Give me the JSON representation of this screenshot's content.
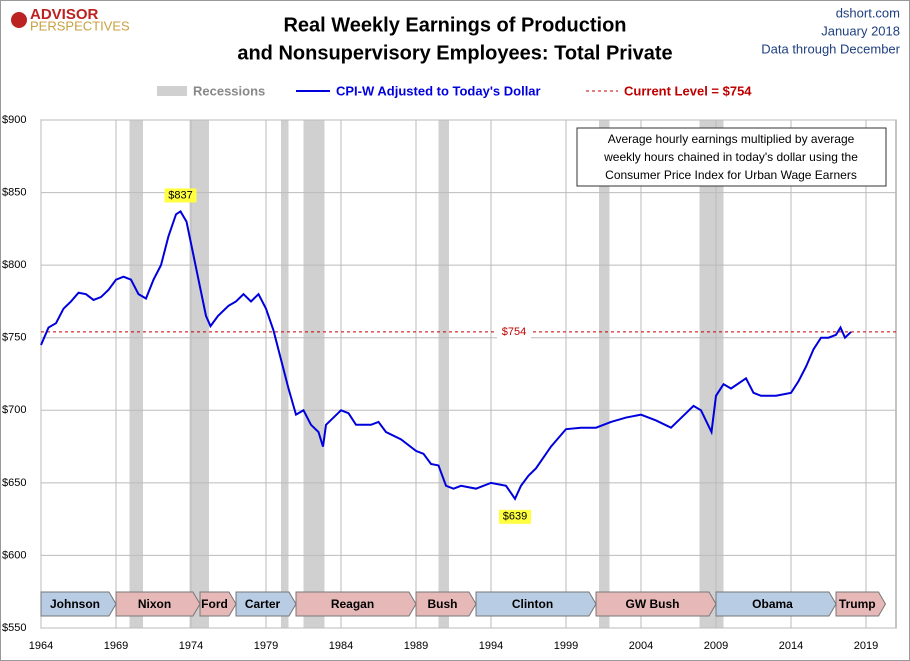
{
  "brand": {
    "line1": "ADVISOR",
    "line2": "PERSPECTIVES"
  },
  "source": {
    "site": "dshort.com",
    "date": "January 2018",
    "note": "Data through December"
  },
  "chart_data": {
    "type": "line",
    "title": [
      "Real Weekly Earnings of Production",
      "and Nonsupervisory Employees: Total Private"
    ],
    "note": [
      "Average hourly earnings multiplied by average",
      "weekly hours chained in today's dollar using the",
      "Consumer Price Index for Urban Wage Earners"
    ],
    "xlim": [
      1964,
      2021
    ],
    "xticks": [
      1964,
      1969,
      1974,
      1979,
      1984,
      1989,
      1994,
      1999,
      2004,
      2009,
      2014,
      2019
    ],
    "ylim": [
      550,
      900
    ],
    "yticks": [
      {
        "value": 550,
        "label": "$550"
      },
      {
        "value": 600,
        "label": "$600"
      },
      {
        "value": 650,
        "label": "$650"
      },
      {
        "value": 700,
        "label": "$700"
      },
      {
        "value": 750,
        "label": "$750"
      },
      {
        "value": 800,
        "label": "$800"
      },
      {
        "value": 850,
        "label": "$850"
      },
      {
        "value": 900,
        "label": "$900"
      }
    ],
    "grid": true,
    "series": [
      {
        "name": "CPI-W Adjusted to Today's Dollar",
        "color": "#0000dd",
        "x": [
          1964,
          1964.5,
          1965,
          1965.5,
          1966,
          1966.5,
          1967,
          1967.5,
          1968,
          1968.5,
          1969,
          1969.5,
          1970,
          1970.5,
          1971,
          1971.5,
          1972,
          1972.5,
          1973,
          1973.3,
          1973.7,
          1974,
          1974.5,
          1975,
          1975.3,
          1975.8,
          1976.5,
          1977,
          1977.5,
          1978,
          1978.5,
          1979,
          1979.5,
          1980,
          1980.5,
          1981,
          1981.5,
          1982,
          1982.5,
          1982.8,
          1983,
          1983.5,
          1984,
          1984.5,
          1985,
          1986,
          1986.5,
          1987,
          1988,
          1989,
          1989.5,
          1990,
          1990.5,
          1991,
          1991.5,
          1992,
          1993,
          1994,
          1995,
          1995.6,
          1996,
          1996.5,
          1997,
          1998,
          1999,
          2000,
          2001,
          2002,
          2003,
          2004,
          2005,
          2006,
          2007,
          2007.5,
          2008,
          2008.7,
          2009,
          2009.5,
          2010,
          2011,
          2011.5,
          2012,
          2013,
          2014,
          2014.5,
          2015,
          2015.5,
          2016,
          2016.5,
          2017,
          2017.3,
          2017.6,
          2018
        ],
        "values": [
          745,
          757,
          760,
          770,
          775,
          781,
          780,
          776,
          778,
          783,
          790,
          792,
          790,
          780,
          777,
          790,
          800,
          820,
          835,
          837,
          830,
          815,
          790,
          765,
          758,
          765,
          772,
          775,
          780,
          775,
          780,
          770,
          755,
          735,
          715,
          697,
          700,
          690,
          685,
          675,
          690,
          695,
          700,
          698,
          690,
          690,
          692,
          685,
          680,
          672,
          670,
          663,
          662,
          648,
          646,
          648,
          646,
          650,
          648,
          639,
          648,
          655,
          660,
          675,
          687,
          688,
          688,
          692,
          695,
          697,
          693,
          688,
          698,
          703,
          700,
          685,
          710,
          718,
          715,
          722,
          712,
          710,
          710,
          712,
          720,
          730,
          742,
          750,
          750,
          752,
          757,
          750,
          754
        ]
      }
    ],
    "recession_label": "Recessions",
    "recessions": [
      [
        1969.9,
        1970.8
      ],
      [
        1973.9,
        1975.2
      ],
      [
        1980,
        1980.5
      ],
      [
        1981.5,
        1982.9
      ],
      [
        1990.5,
        1991.2
      ],
      [
        2001.2,
        2001.9
      ],
      [
        2007.9,
        2009.5
      ]
    ],
    "current_level": {
      "label": "Current Level = $754",
      "value": 754,
      "value_label": "$754",
      "color": "#c00000"
    },
    "annotations": [
      {
        "x": 1973.3,
        "value": 837,
        "label": "$837"
      },
      {
        "x": 1995.6,
        "value": 639,
        "label": "$639"
      }
    ],
    "presidents": [
      {
        "name": "Johnson",
        "start": 1964,
        "end": 1969,
        "color": "#b8cce4"
      },
      {
        "name": "Nixon",
        "start": 1969,
        "end": 1974.6,
        "color": "#e6b8b7"
      },
      {
        "name": "Ford",
        "start": 1974.6,
        "end": 1977,
        "color": "#e6b8b7"
      },
      {
        "name": "Carter",
        "start": 1977,
        "end": 1981,
        "color": "#b8cce4"
      },
      {
        "name": "Reagan",
        "start": 1981,
        "end": 1989,
        "color": "#e6b8b7"
      },
      {
        "name": "Bush",
        "start": 1989,
        "end": 1993,
        "color": "#e6b8b7"
      },
      {
        "name": "Clinton",
        "start": 1993,
        "end": 2001,
        "color": "#b8cce4"
      },
      {
        "name": "GW Bush",
        "start": 2001,
        "end": 2009,
        "color": "#e6b8b7"
      },
      {
        "name": "Obama",
        "start": 2009,
        "end": 2017,
        "color": "#b8cce4"
      },
      {
        "name": "Trump",
        "start": 2017,
        "end": 2020.3,
        "color": "#e6b8b7"
      }
    ]
  }
}
